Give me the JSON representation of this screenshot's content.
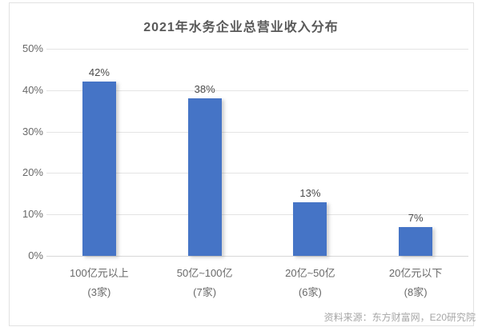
{
  "chart_data": {
    "type": "bar",
    "title": "2021年水务企业总营业收入分布",
    "categories": [
      "100亿元以上",
      "50亿~100亿",
      "20亿~50亿",
      "20亿元以下"
    ],
    "category_sublabels": [
      "(3家)",
      "(7家)",
      "(6家)",
      "(8家)"
    ],
    "values": [
      42,
      38,
      13,
      7
    ],
    "value_labels": [
      "42%",
      "38%",
      "13%",
      "7%"
    ],
    "xlabel": "",
    "ylabel": "",
    "ylim": [
      0,
      50
    ],
    "ytick_step": 10,
    "yticks": [
      "0%",
      "10%",
      "20%",
      "30%",
      "40%",
      "50%"
    ],
    "grid": true,
    "legend": false,
    "bar_color": "#4574c6"
  },
  "source_note": "资料来源：东方财富网，E20研究院"
}
